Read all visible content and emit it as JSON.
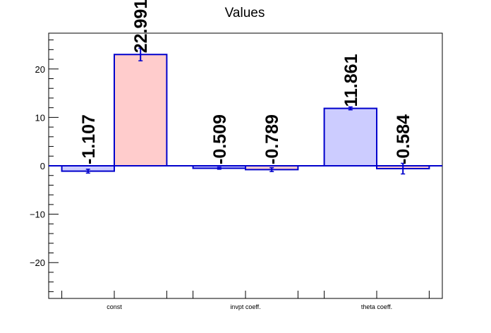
{
  "chart_data": {
    "type": "bar",
    "title": "Values",
    "categories": [
      "const",
      "invpt coeff.",
      "theta coeff."
    ],
    "ylim": [
      -27.4,
      27.4
    ],
    "yticks": [
      -20,
      -10,
      0,
      10,
      20
    ],
    "ytick_labels": [
      "−20",
      "−10",
      "0",
      "10",
      "20"
    ],
    "grid": false,
    "series": [
      {
        "fill": "#ccccff",
        "stroke": "#0000cc",
        "values": [
          -1.107,
          -0.509,
          11.861
        ],
        "errors": [
          0.4,
          0.2,
          0.3
        ],
        "labels": [
          "-1.107",
          "-0.509",
          "11.861"
        ]
      },
      {
        "fill": "#ffcccc",
        "stroke": "#0000cc",
        "values": [
          22.991,
          -0.789,
          -0.584
        ],
        "errors": [
          1.3,
          0.4,
          1.1
        ],
        "labels": [
          "22.991",
          "-0.789",
          "-0.584"
        ]
      }
    ]
  }
}
